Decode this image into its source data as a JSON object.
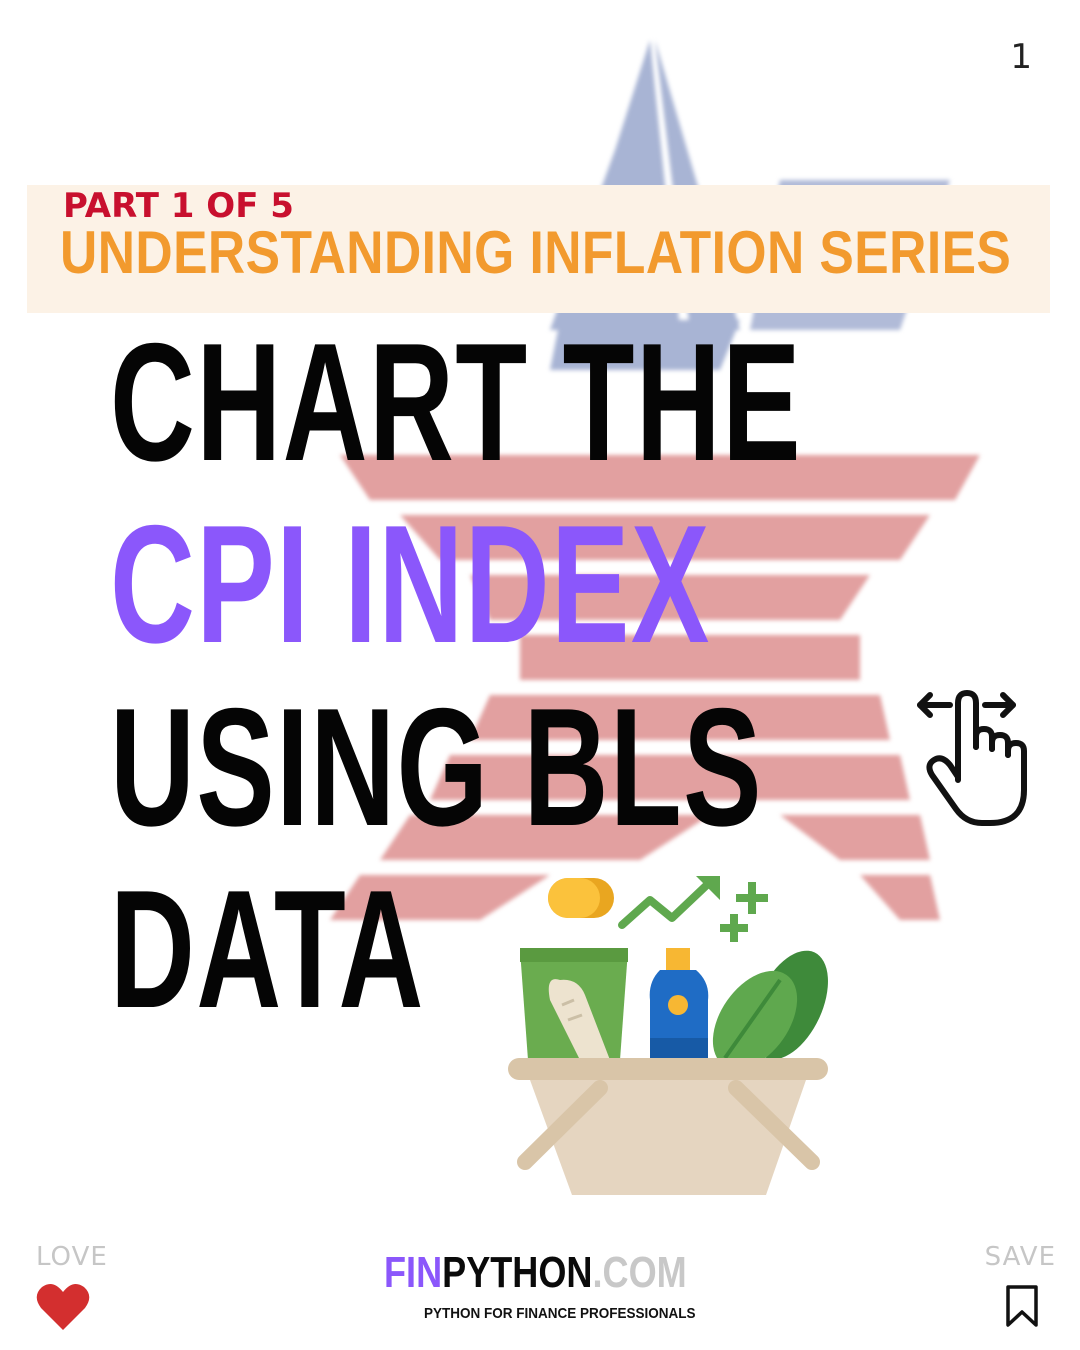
{
  "page": {
    "number": "1"
  },
  "series": {
    "part": "PART 1 OF 5",
    "title": "UNDERSTANDING INFLATION SERIES"
  },
  "headline": {
    "line1": "CHART THE",
    "line2": "CPI INDEX",
    "line3": "USING BLS",
    "line4": "DATA"
  },
  "footer": {
    "love_label": "LOVE",
    "save_label": "SAVE",
    "brand_fin": "FIN",
    "brand_python": "PYTHON",
    "brand_com": ".COM",
    "tagline": "PYTHON FOR FINANCE PROFESSIONALS"
  },
  "icons": {
    "swipe": "swipe-hand-icon",
    "basket": "grocery-basket-icon",
    "heart": "heart-icon",
    "bookmark": "bookmark-icon",
    "background": "bls-star-logo"
  },
  "colors": {
    "accent_purple": "#8b57fb",
    "series_orange": "#f29a2e",
    "part_red": "#c8102e",
    "banner_bg": "#fcf2e6",
    "heart_red": "#d32f2f",
    "star_blue": "#a8b4d4",
    "star_red": "#e2a0a0"
  }
}
